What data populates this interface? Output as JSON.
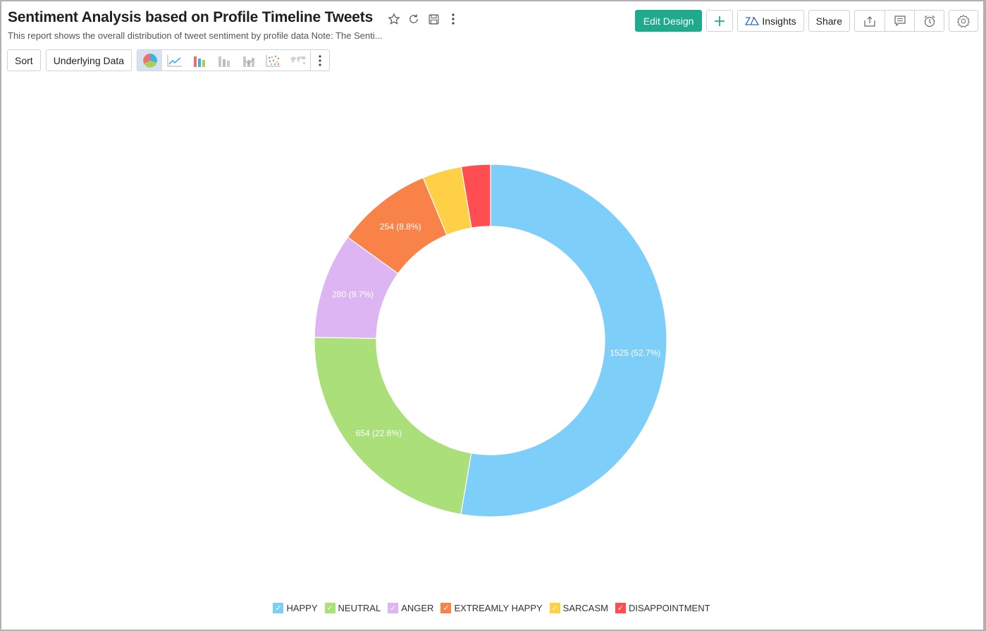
{
  "header": {
    "title": "Sentiment Analysis based on Profile Timeline Tweets",
    "subtitle": "This report shows the overall distribution of tweet sentiment by profile data Note: The Senti...",
    "title_icons": [
      "star-icon",
      "refresh-icon",
      "save-icon",
      "more-vertical-icon"
    ]
  },
  "toolbar": {
    "sort_label": "Sort",
    "underlying_data_label": "Underlying Data",
    "chart_types": [
      "pie",
      "line",
      "bar",
      "stacked-bar",
      "waterfall",
      "scatter",
      "map"
    ],
    "active_chart_type": "pie",
    "edit_design_label": "Edit Design",
    "add_label": "+",
    "insights_label": "Insights",
    "share_label": "Share",
    "right_icons": [
      "export-icon",
      "comment-icon",
      "alarm-icon",
      "settings-icon"
    ]
  },
  "colors": {
    "accent": "#1fab8b",
    "happy": "#7ecefa",
    "neutral": "#abdf7a",
    "anger": "#ddb5f3",
    "extreamly_happy": "#f98249",
    "sarcasm": "#fdd045",
    "disappointment": "#fe4e52"
  },
  "chart_data": {
    "type": "pie",
    "variant": "donut",
    "title": "Sentiment Analysis based on Profile Timeline Tweets",
    "categories": [
      "HAPPY",
      "NEUTRAL",
      "ANGER",
      "EXTREAMLY HAPPY",
      "SARCASM",
      "DISAPPOINTMENT"
    ],
    "values": [
      1525,
      654,
      280,
      254,
      104,
      77
    ],
    "percentages": [
      52.7,
      22.6,
      9.7,
      8.8,
      3.6,
      2.7
    ],
    "labels": [
      "1525 (52.7%)",
      "654 (22.6%)",
      "280 (9.7%)",
      "254 (8.8%)",
      "",
      ""
    ],
    "colors": [
      "#7ecefa",
      "#abdf7a",
      "#ddb5f3",
      "#f98249",
      "#fdd045",
      "#fe4e52"
    ],
    "legend_position": "bottom"
  },
  "legend": [
    {
      "label": "HAPPY",
      "color": "#7ecefa"
    },
    {
      "label": "NEUTRAL",
      "color": "#abdf7a"
    },
    {
      "label": "ANGER",
      "color": "#ddb5f3"
    },
    {
      "label": "EXTREAMLY HAPPY",
      "color": "#f98249"
    },
    {
      "label": "SARCASM",
      "color": "#fdd045"
    },
    {
      "label": "DISAPPOINTMENT",
      "color": "#fe4e52"
    }
  ]
}
